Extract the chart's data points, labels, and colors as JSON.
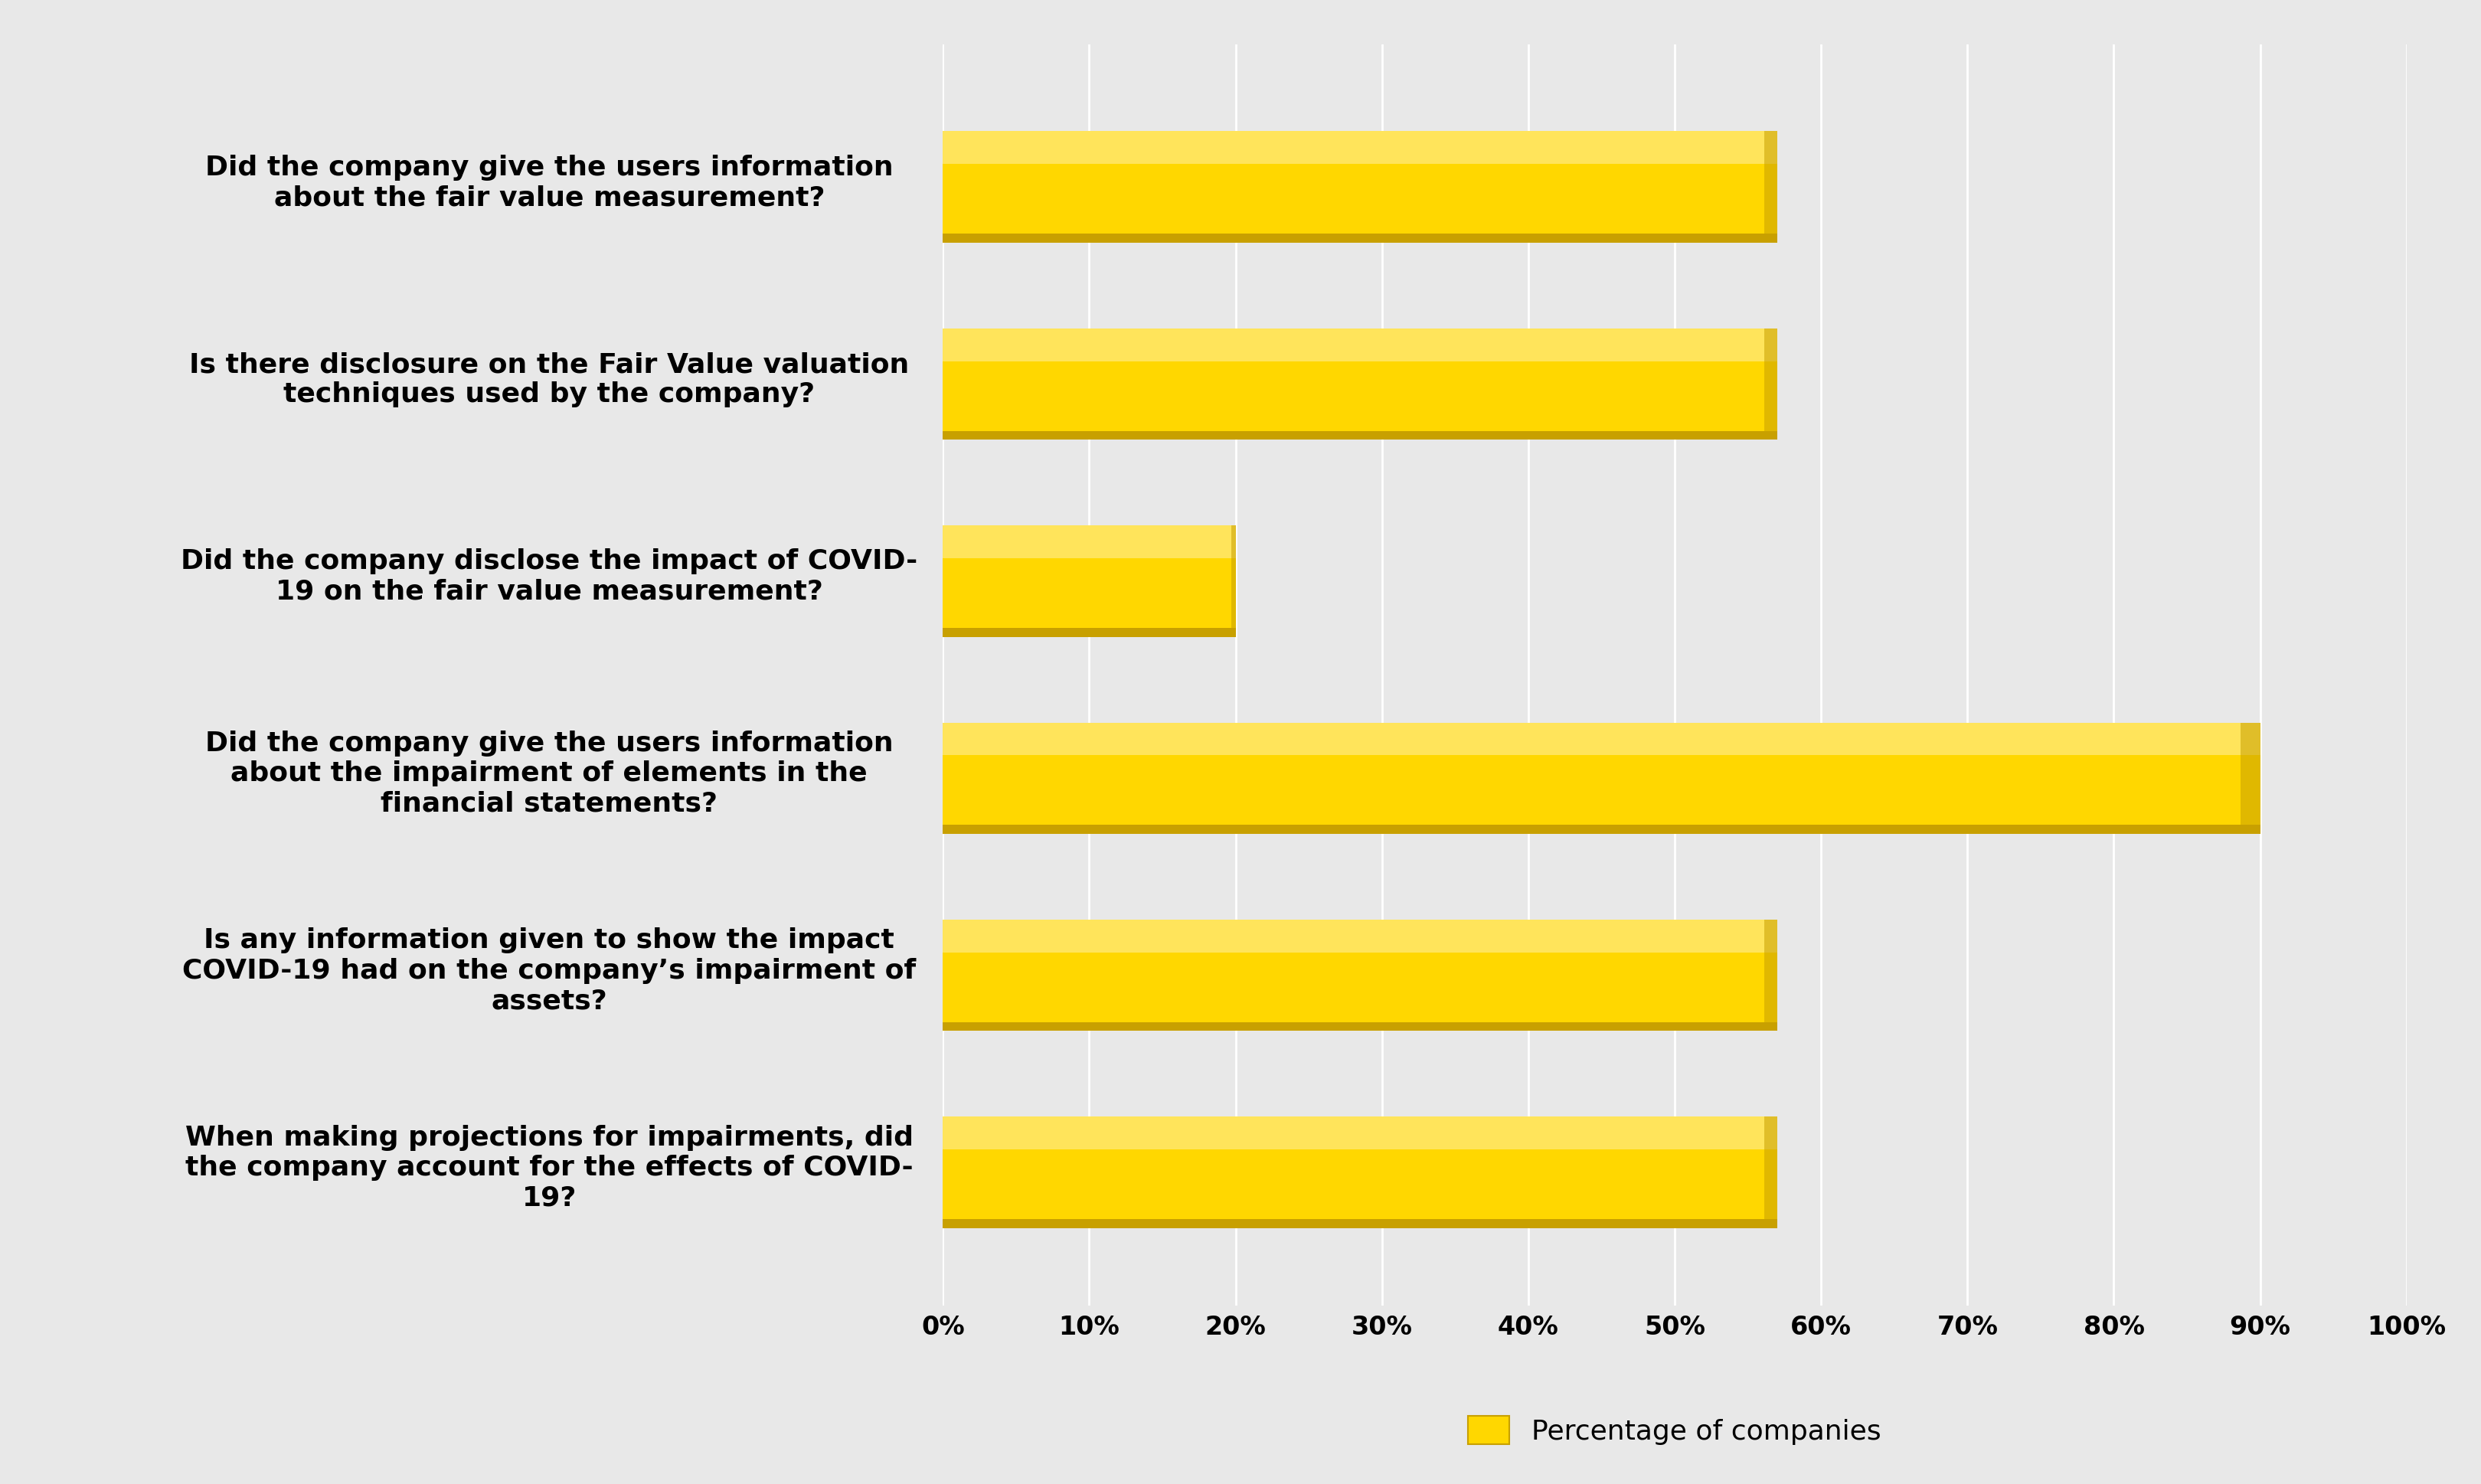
{
  "categories": [
    "Did the company give the users information\nabout the fair value measurement?",
    "Is there disclosure on the Fair Value valuation\ntechniques used by the company?",
    "Did the company disclose the impact of COVID-\n19 on the fair value measurement?",
    "Did the company give the users information\nabout the impairment of elements in the\nfinancial statements?",
    "Is any information given to show the impact\nCOVID-19 had on the company’s impairment of\nassets?",
    "When making projections for impairments, did\nthe company account for the effects of COVID-\n19?"
  ],
  "values": [
    57,
    57,
    20,
    90,
    57,
    57
  ],
  "bar_color_main": "#FFD700",
  "bar_color_light": "#FFE97A",
  "bar_color_dark": "#C8A000",
  "background_color": "#E8E8E8",
  "plot_bg_color": "#E8E8E8",
  "legend_label": "Percentage of companies",
  "xlim": [
    0,
    100
  ],
  "tick_labels": [
    "0%",
    "10%",
    "20%",
    "30%",
    "40%",
    "50%",
    "60%",
    "70%",
    "80%",
    "90%",
    "100%"
  ],
  "tick_values": [
    0,
    10,
    20,
    30,
    40,
    50,
    60,
    70,
    80,
    90,
    100
  ],
  "label_fontsize": 26,
  "tick_fontsize": 24,
  "legend_fontsize": 26
}
